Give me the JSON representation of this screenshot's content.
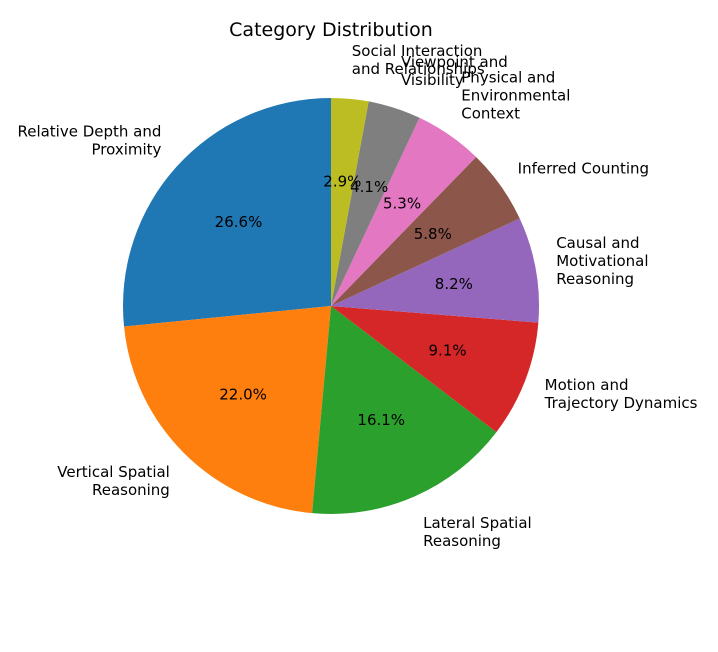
{
  "chart_data": {
    "type": "pie",
    "title": "Category Distribution",
    "start_angle_deg": 90,
    "direction": "counterclockwise",
    "slices": [
      {
        "label": "Relative Depth and\nProximity",
        "value": 26.6,
        "pct_label": "26.6%",
        "color": "#1f77b4"
      },
      {
        "label": "Vertical Spatial\nReasoning",
        "value": 22.0,
        "pct_label": "22.0%",
        "color": "#ff7f0e"
      },
      {
        "label": "Lateral Spatial\nReasoning",
        "value": 16.1,
        "pct_label": "16.1%",
        "color": "#2ca02c"
      },
      {
        "label": "Motion and\nTrajectory Dynamics",
        "value": 9.1,
        "pct_label": "9.1%",
        "color": "#d62728"
      },
      {
        "label": "Causal and\nMotivational\nReasoning",
        "value": 8.2,
        "pct_label": "8.2%",
        "color": "#9467bd"
      },
      {
        "label": "Inferred Counting",
        "value": 5.8,
        "pct_label": "5.8%",
        "color": "#8c564b"
      },
      {
        "label": "Physical and\nEnvironmental\nContext",
        "value": 5.3,
        "pct_label": "5.3%",
        "color": "#e377c2"
      },
      {
        "label": "Viewpoint and\nVisibility",
        "value": 4.1,
        "pct_label": "4.1%",
        "color": "#7f7f7f"
      },
      {
        "label": "Social Interaction\nand Relationships",
        "value": 2.9,
        "pct_label": "2.9%",
        "color": "#bcbd22"
      }
    ]
  }
}
